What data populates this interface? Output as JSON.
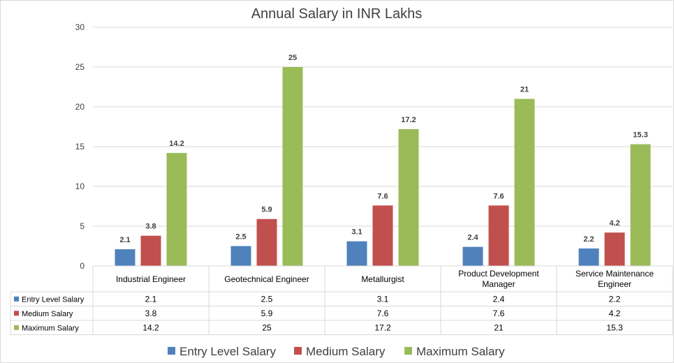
{
  "chart_data": {
    "type": "bar",
    "title": "Annual Salary in INR Lakhs",
    "xlabel": "",
    "ylabel": "",
    "ylim": [
      0,
      30
    ],
    "yticks": [
      0,
      5,
      10,
      15,
      20,
      25,
      30
    ],
    "grid": true,
    "legend_position": "bottom",
    "has_data_table": true,
    "categories": [
      [
        "Industrial Engineer"
      ],
      [
        "Geotechnical Engineer"
      ],
      [
        "Metallurgist"
      ],
      [
        "Product Development",
        "Manager"
      ],
      [
        "Service Maintenance",
        "Engineer"
      ]
    ],
    "series": [
      {
        "name": "Entry Level Salary",
        "color": "#4F81BD",
        "values": [
          2.1,
          2.5,
          3.1,
          2.4,
          2.2
        ]
      },
      {
        "name": "Medium Salary",
        "color": "#C0504D",
        "values": [
          3.8,
          5.9,
          7.6,
          7.6,
          4.2
        ]
      },
      {
        "name": "Maximum Salary",
        "color": "#9BBB59",
        "values": [
          14.2,
          25,
          17.2,
          21,
          15.3
        ]
      }
    ]
  }
}
